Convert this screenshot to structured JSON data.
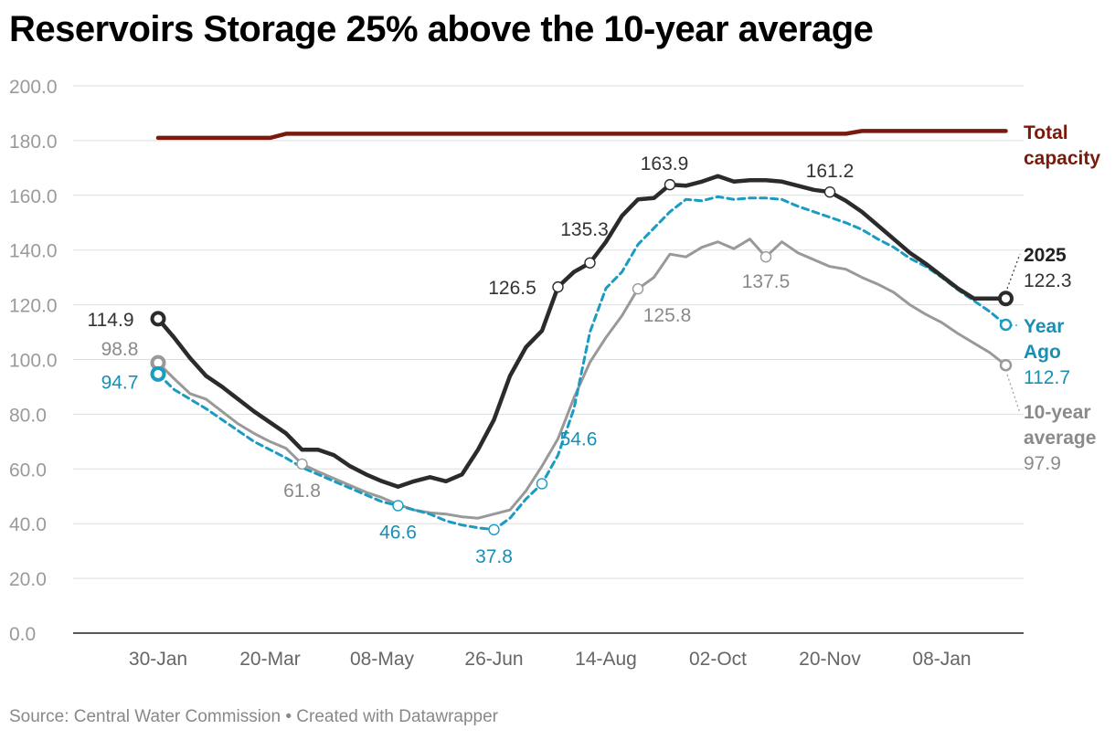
{
  "title": "Reservoirs Storage 25% above the 10-year average",
  "footer": {
    "source": "Source: Central Water Commission",
    "separator": " • ",
    "credit": "Created with Datawrapper"
  },
  "colors": {
    "current": "#2b2b2b",
    "year_ago": "#1a9cc2",
    "avg": "#999999",
    "capacity": "#7a1a0c",
    "grid": "#dddddd"
  },
  "chart_data": {
    "type": "line",
    "title": "Reservoirs Storage 25% above the 10-year average",
    "xlabel": "",
    "ylabel": "",
    "ylim": [
      0,
      200
    ],
    "y_ticks": [
      "200.0",
      "180.0",
      "160.0",
      "140.0",
      "120.0",
      "100.0",
      "80.0",
      "60.0",
      "40.0",
      "20.0",
      "0.0"
    ],
    "x_ticks": [
      {
        "label": "30-Jan",
        "week": 0
      },
      {
        "label": "20-Mar",
        "week": 7
      },
      {
        "label": "08-May",
        "week": 14
      },
      {
        "label": "26-Jun",
        "week": 21
      },
      {
        "label": "14-Aug",
        "week": 28
      },
      {
        "label": "02-Oct",
        "week": 35
      },
      {
        "label": "20-Nov",
        "week": 42
      },
      {
        "label": "08-Jan",
        "week": 49
      }
    ],
    "series": [
      {
        "key": "capacity",
        "name": "Total capacity",
        "weeks": [
          0,
          7,
          8,
          22,
          43,
          44,
          53
        ],
        "values": [
          181,
          181,
          182.5,
          182.5,
          182.5,
          183.5,
          183.5
        ]
      },
      {
        "key": "avg",
        "name": "10-year average",
        "weeks": [
          0,
          1,
          2,
          3,
          4,
          5,
          6,
          7,
          8,
          9,
          10,
          11,
          12,
          13,
          14,
          15,
          16,
          17,
          18,
          19,
          20,
          21,
          22,
          23,
          24,
          25,
          26,
          27,
          28,
          29,
          30,
          31,
          32,
          33,
          34,
          35,
          36,
          37,
          38,
          39,
          40,
          41,
          42,
          43,
          44,
          45,
          46,
          47,
          48,
          49,
          50,
          51,
          52,
          53
        ],
        "values": [
          98.8,
          93,
          87.5,
          85.5,
          81,
          76.5,
          73,
          70,
          67.5,
          61.8,
          59,
          56.5,
          54,
          51.5,
          49.5,
          47,
          45,
          44,
          43.5,
          42.5,
          42,
          43.5,
          45,
          52,
          61,
          71,
          86,
          99,
          108,
          116,
          125.8,
          130,
          138.5,
          137.5,
          141,
          143,
          140.5,
          144,
          137.5,
          143,
          139,
          136.5,
          134,
          133,
          130,
          127.5,
          124.5,
          120,
          116.5,
          113.5,
          109.5,
          106,
          102.5,
          97.9
        ]
      },
      {
        "key": "year_ago",
        "name": "Year Ago",
        "weeks": [
          0,
          1,
          2,
          3,
          4,
          5,
          6,
          7,
          8,
          9,
          10,
          11,
          12,
          13,
          14,
          15,
          16,
          17,
          18,
          19,
          20,
          21,
          22,
          23,
          24,
          25,
          26,
          27,
          28,
          29,
          30,
          31,
          32,
          33,
          34,
          35,
          36,
          37,
          38,
          39,
          40,
          41,
          42,
          43,
          44,
          45,
          46,
          47,
          48,
          49,
          50,
          51,
          52,
          53
        ],
        "values": [
          94.7,
          89,
          85.5,
          82,
          78,
          74,
          70,
          67,
          64,
          60.5,
          58,
          55.5,
          53,
          50.5,
          48,
          46.6,
          45,
          43.5,
          41,
          39.5,
          38.5,
          37.8,
          42,
          49,
          54.6,
          65,
          82,
          110,
          126,
          132,
          142,
          148,
          154,
          158.5,
          158,
          159.5,
          158.5,
          159,
          159,
          158.5,
          156,
          154,
          152,
          150,
          147.5,
          144,
          141,
          137,
          134,
          130,
          125.5,
          121.5,
          117.5,
          112.7
        ]
      },
      {
        "key": "current",
        "name": "2025",
        "weeks": [
          0,
          1,
          2,
          3,
          4,
          5,
          6,
          7,
          8,
          9,
          10,
          11,
          12,
          13,
          14,
          15,
          16,
          17,
          18,
          19,
          20,
          21,
          22,
          23,
          24,
          25,
          26,
          27,
          28,
          29,
          30,
          31,
          32,
          33,
          34,
          35,
          36,
          37,
          38,
          39,
          40,
          41,
          42,
          43,
          44,
          45,
          46,
          47,
          48,
          49,
          50,
          51,
          52,
          53
        ],
        "values": [
          114.9,
          108,
          100.5,
          94,
          90,
          85.5,
          81,
          77,
          73,
          67,
          67,
          65,
          61,
          58,
          55.5,
          53.5,
          55.5,
          57,
          55.5,
          58,
          67,
          78,
          94,
          104.5,
          110.5,
          126.5,
          132,
          135.3,
          143,
          152.5,
          158.5,
          159,
          163.9,
          163.5,
          165,
          167,
          165,
          165.5,
          165.5,
          165,
          163.5,
          162,
          161.2,
          158,
          154,
          149,
          144,
          139,
          135,
          130.5,
          126,
          122.3,
          122.3,
          122.3
        ]
      }
    ],
    "point_labels": [
      {
        "key": "cur_start",
        "series": "current",
        "week": 0,
        "value": 114.9,
        "text": "114.9"
      },
      {
        "key": "cur_26",
        "series": "current",
        "week": 25,
        "value": 126.5,
        "text": "126.5"
      },
      {
        "key": "cur_27",
        "series": "current",
        "week": 27,
        "value": 135.3,
        "text": "135.3"
      },
      {
        "key": "cur_32",
        "series": "current",
        "week": 32,
        "value": 163.9,
        "text": "163.9"
      },
      {
        "key": "cur_42",
        "series": "current",
        "week": 42,
        "value": 161.2,
        "text": "161.2"
      },
      {
        "key": "avg_start",
        "series": "avg",
        "week": 0,
        "value": 98.8,
        "text": "98.8"
      },
      {
        "key": "avg_9",
        "series": "avg",
        "week": 9,
        "value": 61.8,
        "text": "61.8"
      },
      {
        "key": "avg_30",
        "series": "avg",
        "week": 30,
        "value": 125.8,
        "text": "125.8"
      },
      {
        "key": "avg_38",
        "series": "avg",
        "week": 38,
        "value": 137.5,
        "text": "137.5"
      },
      {
        "key": "ya_start",
        "series": "year_ago",
        "week": 0,
        "value": 94.7,
        "text": "94.7"
      },
      {
        "key": "ya_15",
        "series": "year_ago",
        "week": 15,
        "value": 46.6,
        "text": "46.6"
      },
      {
        "key": "ya_21",
        "series": "year_ago",
        "week": 21,
        "value": 37.8,
        "text": "37.8"
      },
      {
        "key": "ya_24",
        "series": "year_ago",
        "week": 24,
        "value": 54.6,
        "text": "54.6"
      }
    ],
    "end_labels": {
      "current": {
        "name": "2025",
        "value": "122.3"
      },
      "year_ago": {
        "name_line1": "Year",
        "name_line2": "Ago",
        "value": "112.7"
      },
      "avg": {
        "name_line1": "10-year",
        "name_line2": "average",
        "value": "97.9"
      },
      "capacity": {
        "name_line1": "Total",
        "name_line2": "capacity"
      }
    }
  }
}
